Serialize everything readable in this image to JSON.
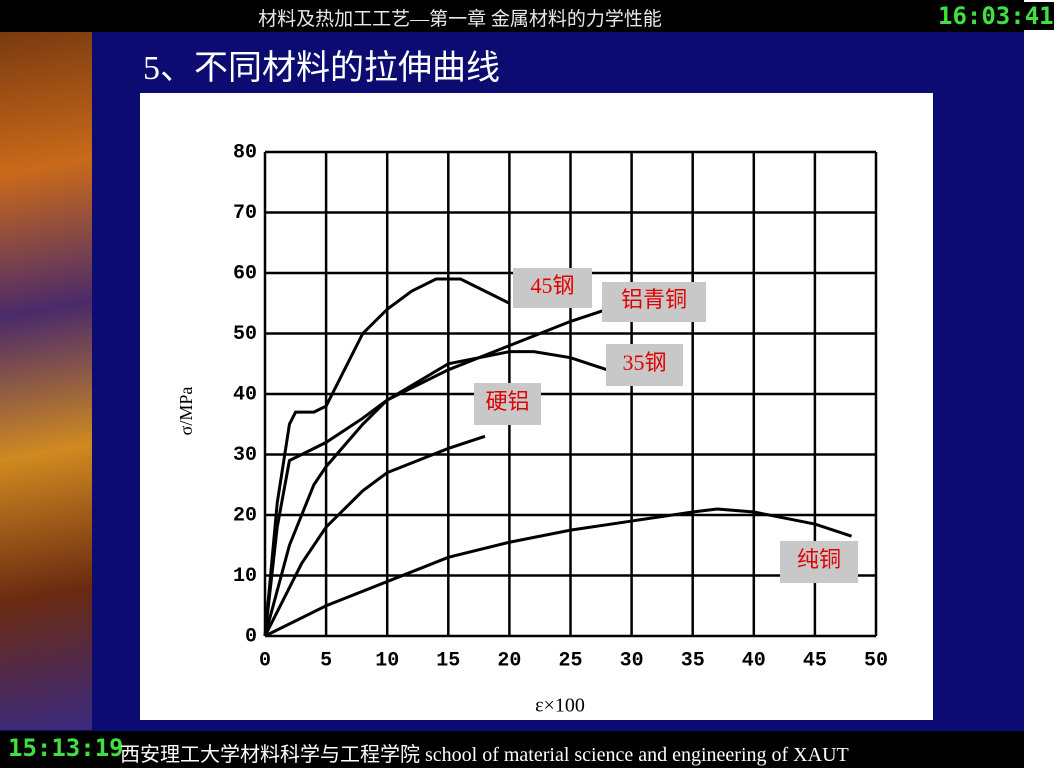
{
  "header": {
    "course": "材料及热加工工艺—第一章 金属材料的力学性能",
    "clock_top": "16:03:41",
    "clock_bottom": "15:13:19"
  },
  "slide_title": "5、不同材料的拉伸曲线",
  "footer": "西安理工大学材料科学与工程学院 school of material science and engineering of XAUT",
  "chart_data": {
    "type": "line",
    "x_label": "ε×100",
    "y_label": "σ/MPa",
    "xlim": [
      0,
      50
    ],
    "ylim": [
      0,
      80
    ],
    "xticks": [
      0,
      5,
      10,
      15,
      20,
      25,
      30,
      35,
      40,
      45,
      50
    ],
    "yticks": [
      0,
      10,
      20,
      30,
      40,
      50,
      60,
      70,
      80
    ],
    "grid": true,
    "series": [
      {
        "name": "45钢",
        "color": "#000000",
        "x": [
          0,
          1,
          2,
          2.5,
          4,
          5,
          6,
          8,
          10,
          12,
          14,
          16,
          18,
          20
        ],
        "values": [
          0,
          22,
          35,
          37,
          37,
          38,
          42,
          50,
          54,
          57,
          59,
          59,
          57,
          55
        ]
      },
      {
        "name": "铝青铜",
        "color": "#000000",
        "x": [
          0,
          1,
          2,
          3,
          5,
          8,
          10,
          15,
          20,
          25,
          28
        ],
        "values": [
          0,
          18,
          29,
          30,
          32,
          36,
          39,
          44,
          48,
          52,
          54
        ]
      },
      {
        "name": "35钢",
        "color": "#000000",
        "x": [
          0,
          2,
          4,
          5,
          8,
          10,
          15,
          20,
          22,
          25,
          28
        ],
        "values": [
          0,
          15,
          25,
          28,
          35,
          39,
          45,
          47,
          47,
          46,
          44
        ]
      },
      {
        "name": "硬铝",
        "color": "#000000",
        "x": [
          0,
          3,
          5,
          8,
          10,
          15,
          18
        ],
        "values": [
          0,
          12,
          18,
          24,
          27,
          31,
          33
        ]
      },
      {
        "name": "纯铜",
        "color": "#000000",
        "x": [
          0,
          5,
          10,
          15,
          20,
          25,
          30,
          35,
          37,
          40,
          45,
          48
        ],
        "values": [
          0,
          5,
          9,
          13,
          15.5,
          17.5,
          19,
          20.5,
          21,
          20.5,
          18.5,
          16.5
        ]
      }
    ]
  }
}
